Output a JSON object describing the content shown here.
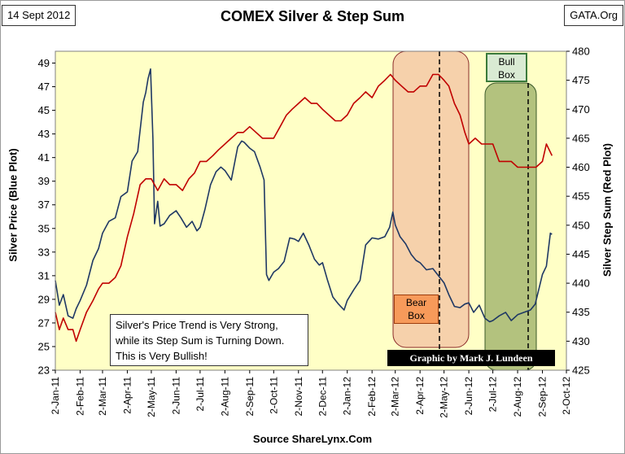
{
  "header": {
    "date": "14 Sept 2012",
    "title": "COMEX Silver & Step Sum",
    "source": "GATA.Org"
  },
  "annotations": {
    "note_line1": "Silver's Price Trend is Very Strong,",
    "note_line2": "while its Step Sum is Turning Down.",
    "note_line3": "This is Very Bullish!",
    "bull_line1": "Bull",
    "bull_line2": "Box",
    "bear_line1": "Bear",
    "bear_line2": "Box",
    "credit": "Graphic by Mark J. Lundeen"
  },
  "colors": {
    "plot_bg": "#ffffc6",
    "silver_line": "#1f3864",
    "stepsum_line": "#c00000",
    "bear_fill": "#f5c9a6",
    "bull_fill": "#93a860"
  },
  "chart_data": {
    "type": "line",
    "title": "COMEX Silver & Step Sum",
    "xlabel": "Source ShareLynx.Com",
    "ylabel": "Silver Price (Blue Plot)",
    "y2label": "Silver Step Sum (Red Plot)",
    "ylim": [
      23,
      50
    ],
    "y2lim": [
      425,
      480
    ],
    "yticks": [
      23,
      25,
      27,
      29,
      31,
      33,
      35,
      37,
      39,
      41,
      43,
      45,
      47,
      49
    ],
    "y2ticks": [
      425,
      430,
      435,
      440,
      445,
      450,
      455,
      460,
      465,
      470,
      475,
      480
    ],
    "xlim": [
      "2011-01-02",
      "2012-10-02"
    ],
    "x_tick_dates": [
      "2011-01-02",
      "2011-02-02",
      "2011-03-02",
      "2011-04-02",
      "2011-05-02",
      "2011-06-02",
      "2011-07-02",
      "2011-08-02",
      "2011-09-02",
      "2011-10-02",
      "2011-11-02",
      "2011-12-02",
      "2012-01-02",
      "2012-02-02",
      "2012-03-02",
      "2012-04-02",
      "2012-05-02",
      "2012-06-02",
      "2012-07-02",
      "2012-08-02",
      "2012-09-02",
      "2012-10-02"
    ],
    "x_tick_labels": [
      "2-Jan-11",
      "2-Feb-11",
      "2-Mar-11",
      "2-Apr-11",
      "2-May-11",
      "2-Jun-11",
      "2-Jul-11",
      "2-Aug-11",
      "2-Sep-11",
      "2-Oct-11",
      "2-Nov-11",
      "2-Dec-11",
      "2-Jan-12",
      "2-Feb-12",
      "2-Mar-12",
      "2-Apr-12",
      "2-May-12",
      "2-Jun-12",
      "2-Jul-12",
      "2-Aug-12",
      "2-Sep-12",
      "2-Oct-12"
    ],
    "grid": false,
    "series": [
      {
        "name": "Silver Price",
        "axis": "left",
        "x": [
          "2011-01-02",
          "2011-01-07",
          "2011-01-12",
          "2011-01-18",
          "2011-01-24",
          "2011-01-28",
          "2011-02-02",
          "2011-02-10",
          "2011-02-18",
          "2011-02-25",
          "2011-03-02",
          "2011-03-10",
          "2011-03-18",
          "2011-03-25",
          "2011-04-02",
          "2011-04-08",
          "2011-04-15",
          "2011-04-22",
          "2011-04-25",
          "2011-04-28",
          "2011-05-01",
          "2011-05-04",
          "2011-05-06",
          "2011-05-10",
          "2011-05-13",
          "2011-05-18",
          "2011-05-25",
          "2011-06-02",
          "2011-06-08",
          "2011-06-15",
          "2011-06-22",
          "2011-06-28",
          "2011-07-02",
          "2011-07-08",
          "2011-07-15",
          "2011-07-22",
          "2011-07-28",
          "2011-08-02",
          "2011-08-10",
          "2011-08-18",
          "2011-08-23",
          "2011-08-26",
          "2011-09-02",
          "2011-09-08",
          "2011-09-15",
          "2011-09-20",
          "2011-09-23",
          "2011-09-26",
          "2011-10-02",
          "2011-10-08",
          "2011-10-15",
          "2011-10-22",
          "2011-10-28",
          "2011-11-02",
          "2011-11-08",
          "2011-11-15",
          "2011-11-22",
          "2011-11-28",
          "2011-12-02",
          "2011-12-08",
          "2011-12-15",
          "2011-12-22",
          "2011-12-29",
          "2012-01-02",
          "2012-01-10",
          "2012-01-18",
          "2012-01-25",
          "2012-02-02",
          "2012-02-10",
          "2012-02-18",
          "2012-02-24",
          "2012-02-28",
          "2012-03-02",
          "2012-03-08",
          "2012-03-15",
          "2012-03-22",
          "2012-03-28",
          "2012-04-02",
          "2012-04-10",
          "2012-04-18",
          "2012-04-25",
          "2012-05-02",
          "2012-05-08",
          "2012-05-15",
          "2012-05-22",
          "2012-05-28",
          "2012-06-02",
          "2012-06-08",
          "2012-06-15",
          "2012-06-22",
          "2012-06-28",
          "2012-07-02",
          "2012-07-10",
          "2012-07-18",
          "2012-07-25",
          "2012-08-02",
          "2012-08-10",
          "2012-08-18",
          "2012-08-24",
          "2012-09-02",
          "2012-09-07",
          "2012-09-12",
          "2012-09-14"
        ],
        "values": [
          30.6,
          28.5,
          29.4,
          27.6,
          27.4,
          28.2,
          28.9,
          30.2,
          32.3,
          33.3,
          34.6,
          35.6,
          35.9,
          37.7,
          38.1,
          40.7,
          41.5,
          45.7,
          46.5,
          47.7,
          48.5,
          42.6,
          35.4,
          37.3,
          35.2,
          35.4,
          36.1,
          36.5,
          35.9,
          35.1,
          35.6,
          34.8,
          35.1,
          36.6,
          38.7,
          39.8,
          40.2,
          39.9,
          39.1,
          41.9,
          42.4,
          42.3,
          41.8,
          41.5,
          40.2,
          39.1,
          31.1,
          30.6,
          31.3,
          31.6,
          32.2,
          34.2,
          34.1,
          33.9,
          34.6,
          33.6,
          32.4,
          31.9,
          32.1,
          30.7,
          29.2,
          28.6,
          28.1,
          28.9,
          29.8,
          30.6,
          33.6,
          34.2,
          34.1,
          34.3,
          35.1,
          36.4,
          35.3,
          34.3,
          33.7,
          32.8,
          32.3,
          32.1,
          31.5,
          31.6,
          31.0,
          30.4,
          29.4,
          28.4,
          28.3,
          28.6,
          28.7,
          27.9,
          28.5,
          27.4,
          27.1,
          27.2,
          27.6,
          27.9,
          27.2,
          27.7,
          27.9,
          28.1,
          28.6,
          31.1,
          31.8,
          34.6,
          34.5
        ]
      },
      {
        "name": "Silver Step Sum",
        "axis": "right",
        "x": [
          "2011-01-02",
          "2011-01-07",
          "2011-01-12",
          "2011-01-18",
          "2011-01-24",
          "2011-01-28",
          "2011-02-02",
          "2011-02-10",
          "2011-02-18",
          "2011-02-25",
          "2011-03-02",
          "2011-03-10",
          "2011-03-18",
          "2011-03-25",
          "2011-04-02",
          "2011-04-10",
          "2011-04-18",
          "2011-04-25",
          "2011-05-02",
          "2011-05-10",
          "2011-05-18",
          "2011-05-25",
          "2011-06-02",
          "2011-06-10",
          "2011-06-18",
          "2011-06-25",
          "2011-07-02",
          "2011-07-10",
          "2011-07-18",
          "2011-07-25",
          "2011-08-02",
          "2011-08-10",
          "2011-08-18",
          "2011-08-25",
          "2011-09-02",
          "2011-09-10",
          "2011-09-18",
          "2011-09-25",
          "2011-10-02",
          "2011-10-10",
          "2011-10-18",
          "2011-10-25",
          "2011-11-02",
          "2011-11-10",
          "2011-11-18",
          "2011-11-25",
          "2011-12-02",
          "2011-12-10",
          "2011-12-18",
          "2011-12-25",
          "2012-01-02",
          "2012-01-10",
          "2012-01-18",
          "2012-01-25",
          "2012-02-02",
          "2012-02-10",
          "2012-02-18",
          "2012-02-25",
          "2012-03-02",
          "2012-03-10",
          "2012-03-18",
          "2012-03-25",
          "2012-04-02",
          "2012-04-10",
          "2012-04-18",
          "2012-04-25",
          "2012-05-02",
          "2012-05-08",
          "2012-05-15",
          "2012-05-22",
          "2012-05-28",
          "2012-06-02",
          "2012-06-10",
          "2012-06-18",
          "2012-06-25",
          "2012-07-02",
          "2012-07-10",
          "2012-07-18",
          "2012-07-25",
          "2012-08-02",
          "2012-08-10",
          "2012-08-18",
          "2012-08-25",
          "2012-09-02",
          "2012-09-07",
          "2012-09-14"
        ],
        "values": [
          435,
          432,
          434,
          432,
          432,
          430,
          432,
          435,
          437,
          439,
          440,
          440,
          441,
          443,
          448,
          452,
          457,
          458,
          458,
          456,
          458,
          457,
          457,
          456,
          458,
          459,
          461,
          461,
          462,
          463,
          464,
          465,
          466,
          466,
          467,
          466,
          465,
          465,
          465,
          467,
          469,
          470,
          471,
          472,
          471,
          471,
          470,
          469,
          468,
          468,
          469,
          471,
          472,
          473,
          472,
          474,
          475,
          476,
          475,
          474,
          473,
          473,
          474,
          474,
          476,
          476,
          475,
          474,
          471,
          469,
          466,
          464,
          465,
          464,
          464,
          464,
          461,
          461,
          461,
          460,
          460,
          460,
          460,
          461,
          464,
          462
        ]
      }
    ]
  }
}
